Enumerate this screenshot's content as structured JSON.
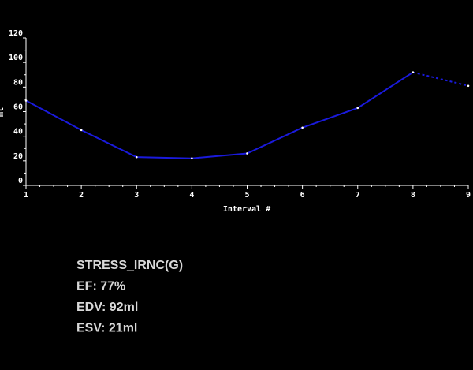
{
  "chart_data": {
    "type": "line",
    "x_label": "Interval #",
    "y_label": "ml",
    "x": [
      1,
      2,
      3,
      4,
      5,
      6,
      7,
      8,
      9
    ],
    "series": [
      {
        "color": "#1a1adc",
        "dashed": false,
        "values": [
          69,
          45,
          23,
          22,
          26,
          47,
          63,
          92,
          null
        ]
      },
      {
        "color": "#1a1adc",
        "dashed": true,
        "values": [
          null,
          null,
          null,
          null,
          null,
          null,
          null,
          92,
          81
        ]
      }
    ],
    "xlim": [
      1,
      9
    ],
    "xticks": [
      1,
      2,
      3,
      4,
      5,
      6,
      7,
      8,
      9
    ],
    "ylim": [
      0,
      120
    ],
    "yticks": [
      0,
      20,
      40,
      60,
      80,
      100,
      120
    ],
    "info": [
      "STRESS_IRNC(G)",
      "EF: 77%",
      "EDV: 92ml",
      "ESV: 21ml"
    ]
  }
}
